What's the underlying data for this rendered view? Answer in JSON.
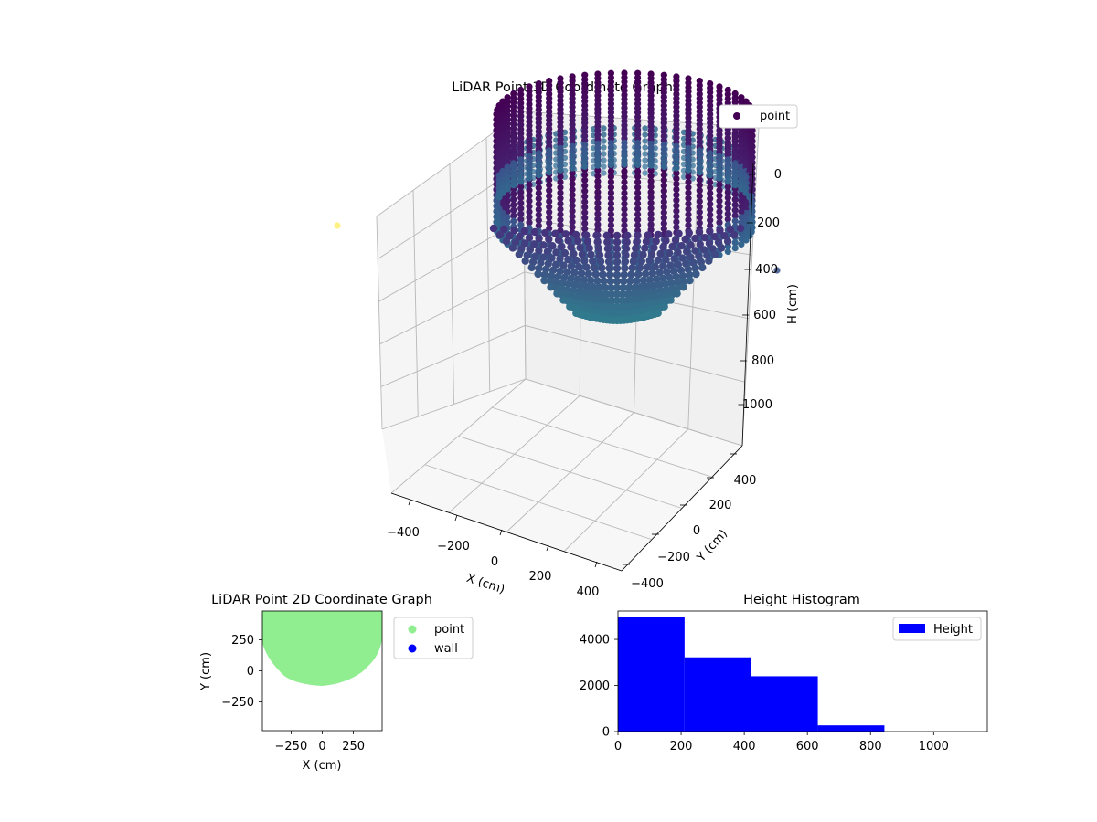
{
  "charts_colors": {
    "point_2d": "#90ee90",
    "wall_2d": "#0000ff",
    "histogram": "#0000ff",
    "viridis_dark": "#440154",
    "viridis_mid": "#31688e",
    "viridis_teal": "#35b779",
    "viridis_yellow": "#fde725"
  },
  "chart_data": [
    {
      "type": "scatter",
      "projection": "3d",
      "title": "LiDAR Point 3D Coordinate Graph",
      "xlabel": "X (cm)",
      "ylabel": "Y (cm)",
      "zlabel": "H (cm)",
      "xticks": [
        "−400",
        "−200",
        "0",
        "200",
        "400"
      ],
      "yticks": [
        "−400",
        "−200",
        "0",
        "200",
        "400"
      ],
      "zticks": [
        "0",
        "200",
        "400",
        "600",
        "800",
        "1000"
      ],
      "xlim": [
        -450,
        450
      ],
      "ylim": [
        -450,
        450
      ],
      "zlim": [
        1100,
        0
      ],
      "z_inverted": true,
      "colormap": "viridis",
      "legend": [
        "point"
      ],
      "legend_position": "upper right",
      "grid": true,
      "description_points": "cylindrical shell of points radius ~300 cm, height 0–600 cm, colored by height"
    },
    {
      "type": "scatter",
      "title": "LiDAR Point 2D Coordinate Graph",
      "xlabel": "X (cm)",
      "ylabel": "Y (cm)",
      "xticks": [
        "−250",
        "0",
        "250"
      ],
      "yticks": [
        "−250",
        "0",
        "250"
      ],
      "xlim": [
        -480,
        480
      ],
      "ylim": [
        -480,
        480
      ],
      "series": [
        {
          "name": "point",
          "color": "#90ee90"
        },
        {
          "name": "wall",
          "color": "#0000ff"
        }
      ],
      "legend_position": "outside right"
    },
    {
      "type": "bar",
      "title": "Height Histogram",
      "bin_edges": [
        0,
        211,
        422,
        633,
        844
      ],
      "values": [
        4980,
        3220,
        2400,
        270
      ],
      "xticks": [
        "0",
        "200",
        "400",
        "600",
        "800",
        "1000"
      ],
      "yticks": [
        "0",
        "2000",
        "4000"
      ],
      "xlim": [
        0,
        1170
      ],
      "ylim": [
        0,
        5230
      ],
      "legend": [
        "Height"
      ],
      "legend_position": "upper right"
    }
  ]
}
